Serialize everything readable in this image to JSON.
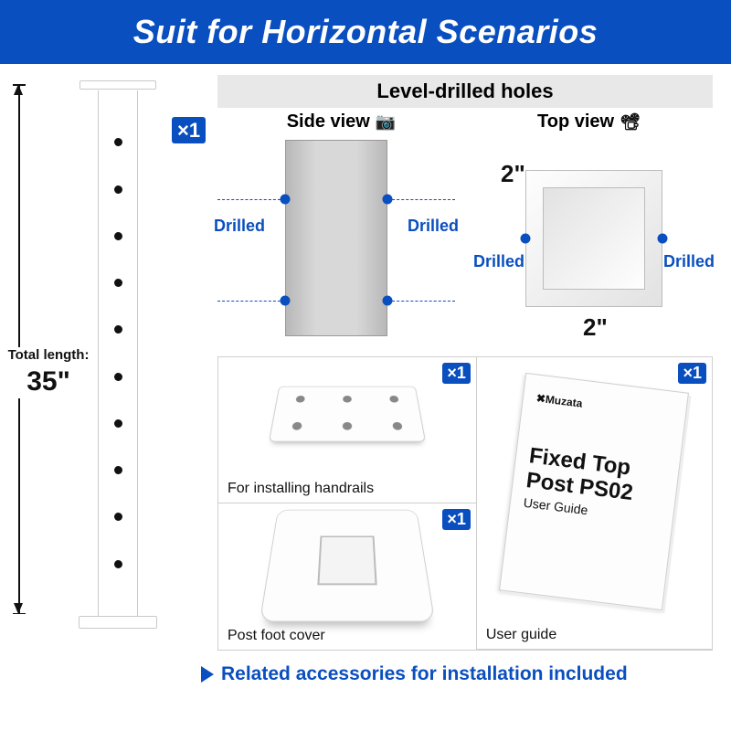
{
  "header": {
    "title": "Suit for Horizontal Scenarios"
  },
  "post": {
    "length_label": "Total length:",
    "length_value": "35\"",
    "qty": "×1",
    "hole_count": 10
  },
  "views": {
    "section_title": "Level-drilled holes",
    "side_label": "Side view",
    "top_label": "Top view",
    "drilled_label": "Drilled",
    "dim_w": "2\"",
    "dim_h": "2\"",
    "colors": {
      "accent": "#0a4fbf",
      "metal_light": "#d8d8d8",
      "metal_dark": "#b8b8b8"
    }
  },
  "accessories": {
    "plate": {
      "label": "For installing handrails",
      "qty": "×1",
      "holes": 6
    },
    "foot_cover": {
      "label": "Post foot cover",
      "qty": "×1"
    },
    "guide": {
      "label": "User guide",
      "qty": "×1",
      "brand": "✖Muzata",
      "title": "Fixed Top Post PS02",
      "subtitle": "User Guide"
    }
  },
  "footer": {
    "text": "Related accessories for installation included"
  }
}
